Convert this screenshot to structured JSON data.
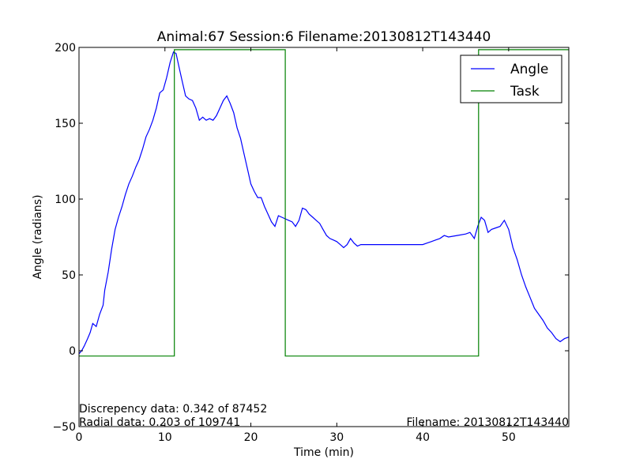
{
  "chart_data": {
    "type": "line",
    "title": "Animal:67  Session:6 Filename:20130812T143440",
    "xlabel": "Time (min)",
    "ylabel": "Angle (radians)",
    "xlim": [
      0,
      57
    ],
    "ylim": [
      -50,
      200
    ],
    "xticks": [
      0,
      10,
      20,
      30,
      40,
      50
    ],
    "yticks": [
      -50,
      0,
      50,
      100,
      150,
      200
    ],
    "grid": false,
    "legend_position": "top-right",
    "annotations": {
      "discrepancy": "Discrepency data: 0.342 of 87452",
      "radial": "Radial data: 0.203 of 109741",
      "filename": "Filename: 20130812T143440"
    },
    "series": [
      {
        "name": "Angle",
        "color": "#0000ff",
        "x": [
          0,
          0.3,
          0.6,
          1.0,
          1.3,
          1.6,
          2.0,
          2.4,
          2.8,
          3.0,
          3.4,
          3.8,
          4.2,
          4.6,
          5.0,
          5.4,
          5.8,
          6.2,
          6.6,
          7.0,
          7.4,
          7.8,
          8.2,
          8.6,
          9.0,
          9.4,
          9.8,
          10.2,
          10.6,
          11.0,
          11.3,
          11.6,
          12.0,
          12.4,
          12.8,
          13.2,
          13.6,
          14.0,
          14.4,
          14.8,
          15.2,
          15.6,
          16.0,
          16.4,
          16.8,
          17.2,
          17.6,
          18.0,
          18.4,
          18.8,
          19.2,
          19.6,
          20.0,
          20.4,
          20.8,
          21.2,
          21.6,
          22.0,
          22.4,
          22.8,
          23.2,
          23.6,
          24.0,
          24.4,
          24.8,
          25.2,
          25.6,
          26.0,
          26.4,
          26.8,
          27.2,
          27.6,
          28.0,
          28.4,
          28.8,
          29.2,
          29.6,
          30.0,
          30.4,
          30.8,
          31.2,
          31.6,
          32.0,
          32.4,
          32.8,
          33.0,
          33.4,
          33.8,
          34.2,
          35.0,
          36.0,
          37.0,
          38.0,
          39.0,
          40.0,
          40.5,
          41.0,
          41.5,
          42.0,
          42.5,
          43.0,
          44.0,
          45.0,
          45.5,
          46.0,
          46.4,
          46.8,
          47.2,
          47.6,
          48.0,
          48.5,
          49.0,
          49.5,
          50.0,
          50.5,
          51.0,
          51.5,
          52.0,
          52.5,
          53.0,
          53.5,
          54.0,
          54.5,
          55.0,
          55.5,
          56.0,
          56.5,
          57.0
        ],
        "y": [
          -2,
          0,
          3,
          8,
          12,
          18,
          16,
          24,
          30,
          40,
          52,
          67,
          80,
          88,
          95,
          103,
          110,
          115,
          121,
          126,
          133,
          141,
          146,
          152,
          160,
          170,
          172,
          180,
          190,
          197,
          196,
          188,
          178,
          168,
          166,
          165,
          160,
          152,
          154,
          152,
          153,
          152,
          155,
          160,
          165,
          168,
          163,
          157,
          147,
          140,
          130,
          120,
          110,
          105,
          101,
          101,
          95,
          90,
          85,
          82,
          89,
          88,
          87,
          86,
          85,
          82,
          86,
          94,
          93,
          90,
          88,
          86,
          84,
          80,
          76,
          74,
          73,
          72,
          70,
          68,
          70,
          74,
          71,
          69,
          70,
          70,
          70,
          70,
          70,
          70,
          70,
          70,
          70,
          70,
          70,
          71,
          72,
          73,
          74,
          76,
          75,
          76,
          77,
          78,
          74,
          82,
          88,
          86,
          78,
          80,
          81,
          82,
          86,
          80,
          68,
          60,
          50,
          42,
          35,
          28,
          24,
          20,
          15,
          12,
          8,
          6,
          8,
          9
        ]
      },
      {
        "name": "Task",
        "color": "#008000",
        "x": [
          0,
          11.1,
          11.1,
          24.0,
          24.0,
          46.5,
          46.5,
          57.0
        ],
        "y": [
          -3.5,
          -3.5,
          198.5,
          198.5,
          -3.5,
          -3.5,
          198.5,
          198.5
        ]
      }
    ]
  }
}
